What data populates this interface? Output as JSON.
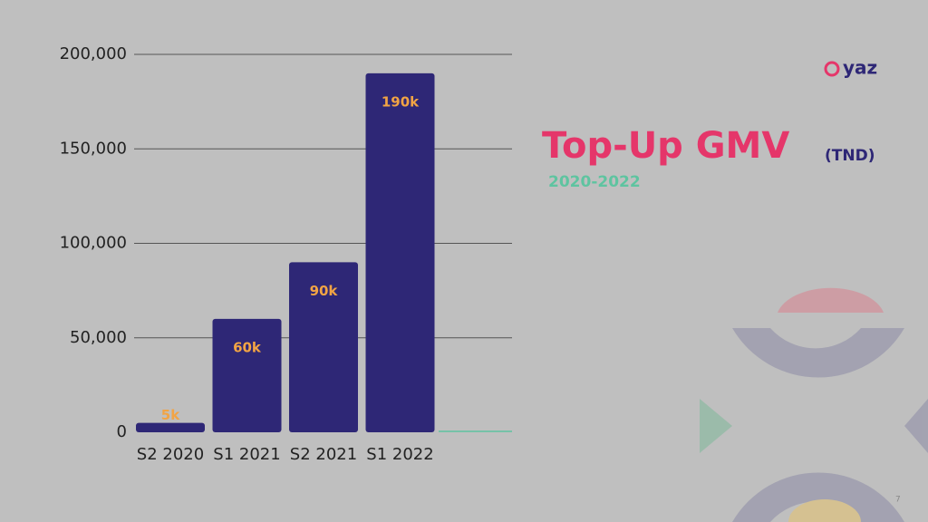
{
  "chart_data": {
    "type": "bar",
    "title": "Top-Up GMV",
    "unit": "(TND)",
    "subtitle": "2020-2022",
    "categories": [
      "S2 2020",
      "S1  2021",
      "S2 2021",
      "S1 2022"
    ],
    "values": [
      5000,
      60000,
      90000,
      190000
    ],
    "value_labels": [
      "5k",
      "60k",
      "90k",
      "190k"
    ],
    "color": "#2e2776",
    "ylim": [
      0,
      200000
    ],
    "yticks": [
      0,
      {
        "value": 50000,
        "label": "50,000"
      },
      {
        "value": 100000,
        "label": "100,000"
      },
      {
        "value": 150000,
        "label": "150,000"
      },
      {
        "value": 200000,
        "label": "200,000"
      }
    ],
    "grid": true
  },
  "logo": "yaz",
  "page_number": "7"
}
